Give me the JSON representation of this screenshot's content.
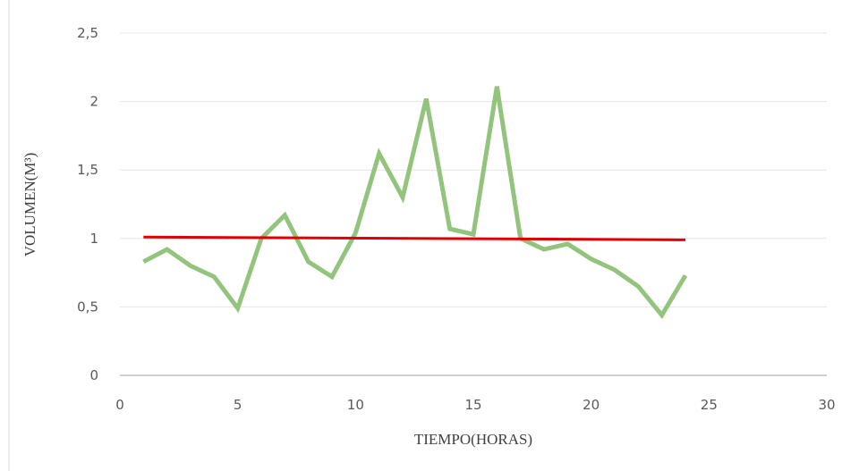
{
  "chart_data": {
    "type": "line",
    "x_label": "TIEMPO(HORAS)",
    "y_label": "VOLUMEN(M³)",
    "series": [
      {
        "color": "#93c47d",
        "x": [
          1,
          2,
          3,
          4,
          5,
          6,
          7,
          8,
          9,
          10,
          11,
          12,
          13,
          14,
          15,
          16,
          17,
          18,
          19,
          20,
          21,
          22,
          23,
          24
        ],
        "values": [
          0.83,
          0.92,
          0.8,
          0.72,
          0.49,
          1.0,
          1.17,
          0.83,
          0.72,
          1.04,
          1.62,
          1.3,
          2.02,
          1.07,
          1.03,
          2.11,
          1.0,
          0.92,
          0.96,
          0.85,
          0.77,
          0.65,
          0.44,
          0.73
        ]
      },
      {
        "color": "#e00000",
        "x": [
          1,
          24
        ],
        "values": [
          1.01,
          0.99
        ]
      }
    ],
    "xlim": [
      0,
      30
    ],
    "xticks": [
      0,
      5,
      10,
      15,
      20,
      25,
      30
    ],
    "ylim": [
      0,
      2.5
    ],
    "yticks": [
      0,
      {
        "value": 0.5,
        "label": "0,5"
      },
      1,
      {
        "value": 1.5,
        "label": "1,5"
      },
      2,
      {
        "value": 2.5,
        "label": "2,5"
      }
    ],
    "grid": true
  }
}
